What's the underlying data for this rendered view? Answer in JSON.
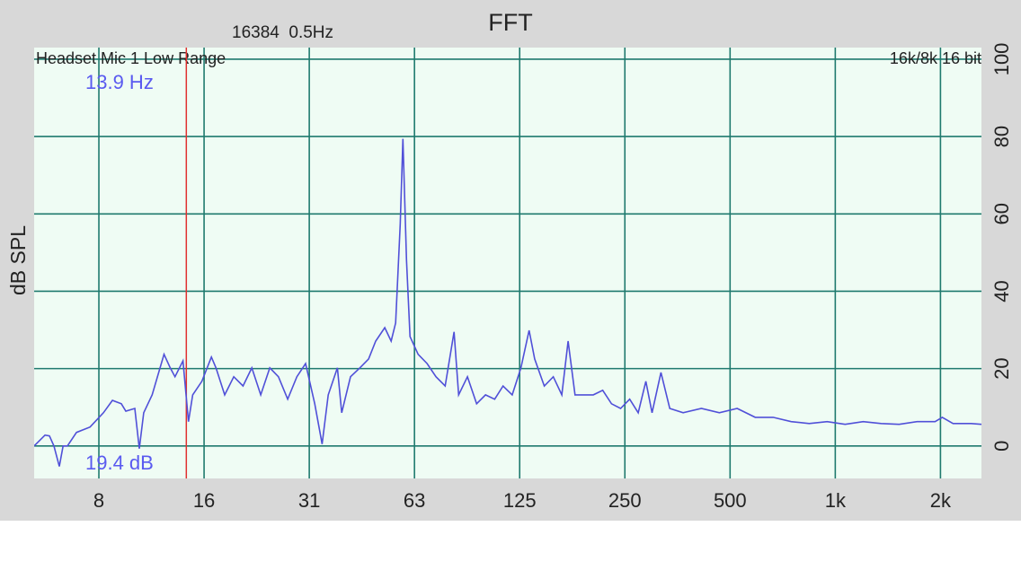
{
  "chart_data": {
    "type": "line",
    "title": "FFT",
    "subtitle": "16384  0.5Hz",
    "source_label": "Headset Mic 1 Low Range",
    "format_label": "16k/8k 16 bit",
    "y_label": "dB SPL",
    "x_scale": "log",
    "grid": true,
    "color": "#5050d8",
    "xlim": [
      5.1,
      2620
    ],
    "ylim": [
      -8.4,
      103
    ],
    "xticks": [
      {
        "value": 7.8125,
        "label": "8"
      },
      {
        "value": 15.625,
        "label": "16"
      },
      {
        "value": 31.25,
        "label": "31"
      },
      {
        "value": 62.5,
        "label": "63"
      },
      125,
      250,
      500,
      {
        "value": 1000,
        "label": "1k"
      },
      {
        "value": 2000,
        "label": "2k"
      }
    ],
    "yticks": [
      0,
      20,
      40,
      60,
      80,
      100
    ],
    "cursor": {
      "x": 13.9,
      "y": 19.4,
      "x_label": "13.9 Hz",
      "y_label": "19.4 dB",
      "color": "#e03030"
    },
    "x": [
      5.1,
      5.48,
      5.64,
      5.81,
      6.02,
      6.17,
      6.35,
      6.74,
      7.37,
      8.05,
      8.54,
      9.06,
      9.33,
      9.9,
      10.2,
      10.5,
      11.1,
      12.0,
      12.5,
      12.9,
      13.6,
      14.1,
      14.5,
      15.4,
      16.4,
      16.9,
      17.9,
      19.0,
      20.2,
      21.4,
      22.7,
      24.1,
      25.5,
      27.1,
      28.8,
      30.5,
      32.4,
      34.0,
      35.4,
      37.6,
      38.7,
      41.0,
      43.6,
      46.2,
      48.4,
      51.4,
      53.6,
      55.2,
      56.9,
      57.9,
      59.3,
      60.7,
      64.0,
      67.9,
      72.0,
      76.5,
      81.1,
      83.6,
      88.6,
      94.1,
      99.8,
      106,
      112,
      119,
      126,
      133,
      138,
      147,
      156,
      165,
      172,
      180,
      191,
      203,
      216,
      229,
      243,
      258,
      273,
      287,
      299,
      317,
      336,
      367,
      414,
      466,
      524,
      590,
      664,
      748,
      842,
      948,
      1067,
      1202,
      1353,
      1523,
      1715,
      1930,
      2024,
      2173,
      2447,
      2620
    ],
    "values": [
      0.0,
      2.8,
      2.6,
      0.0,
      -5.3,
      0.0,
      0.0,
      3.5,
      4.9,
      8.6,
      11.8,
      10.9,
      9.0,
      9.7,
      -0.7,
      8.6,
      13.2,
      23.7,
      20.2,
      17.9,
      22.0,
      6.3,
      13.2,
      16.7,
      23.0,
      20.2,
      13.2,
      17.9,
      15.5,
      20.2,
      13.2,
      20.2,
      17.9,
      12.1,
      17.9,
      21.3,
      10.9,
      0.5,
      13.2,
      20.2,
      8.6,
      17.9,
      20.2,
      22.5,
      27.1,
      30.6,
      27.1,
      31.8,
      57.3,
      79.4,
      48.0,
      28.3,
      23.7,
      21.3,
      17.9,
      15.5,
      29.5,
      13.2,
      17.9,
      10.9,
      13.2,
      12.1,
      15.5,
      13.2,
      20.2,
      29.9,
      22.5,
      15.5,
      17.9,
      13.2,
      27.1,
      13.2,
      13.2,
      13.2,
      14.4,
      10.9,
      9.7,
      12.1,
      8.6,
      16.7,
      8.6,
      19.0,
      9.7,
      8.6,
      9.7,
      8.6,
      9.7,
      7.4,
      7.4,
      6.3,
      5.8,
      6.3,
      5.6,
      6.3,
      5.8,
      5.6,
      6.3,
      6.3,
      7.4,
      5.8,
      5.8,
      5.6
    ]
  }
}
